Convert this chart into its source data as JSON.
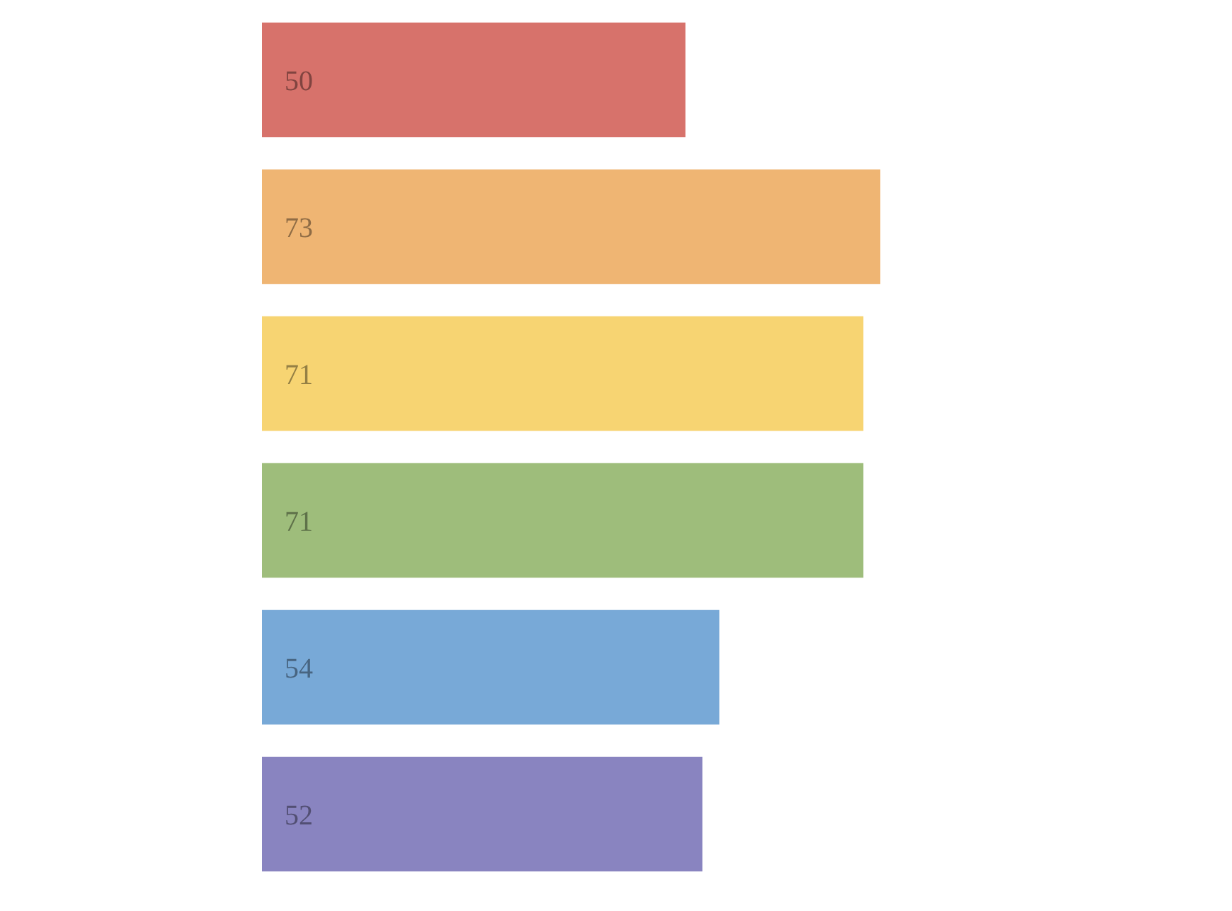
{
  "chart_data": {
    "type": "bar",
    "orientation": "horizontal",
    "categories": [
      null,
      null,
      null,
      null,
      null,
      null
    ],
    "values": [
      50,
      73,
      71,
      71,
      54,
      52
    ],
    "colors": [
      "#d7726b",
      "#efb573",
      "#f7d472",
      "#9ebd7b",
      "#78a9d7",
      "#8984c0"
    ],
    "data_labels": true,
    "grid": false
  }
}
